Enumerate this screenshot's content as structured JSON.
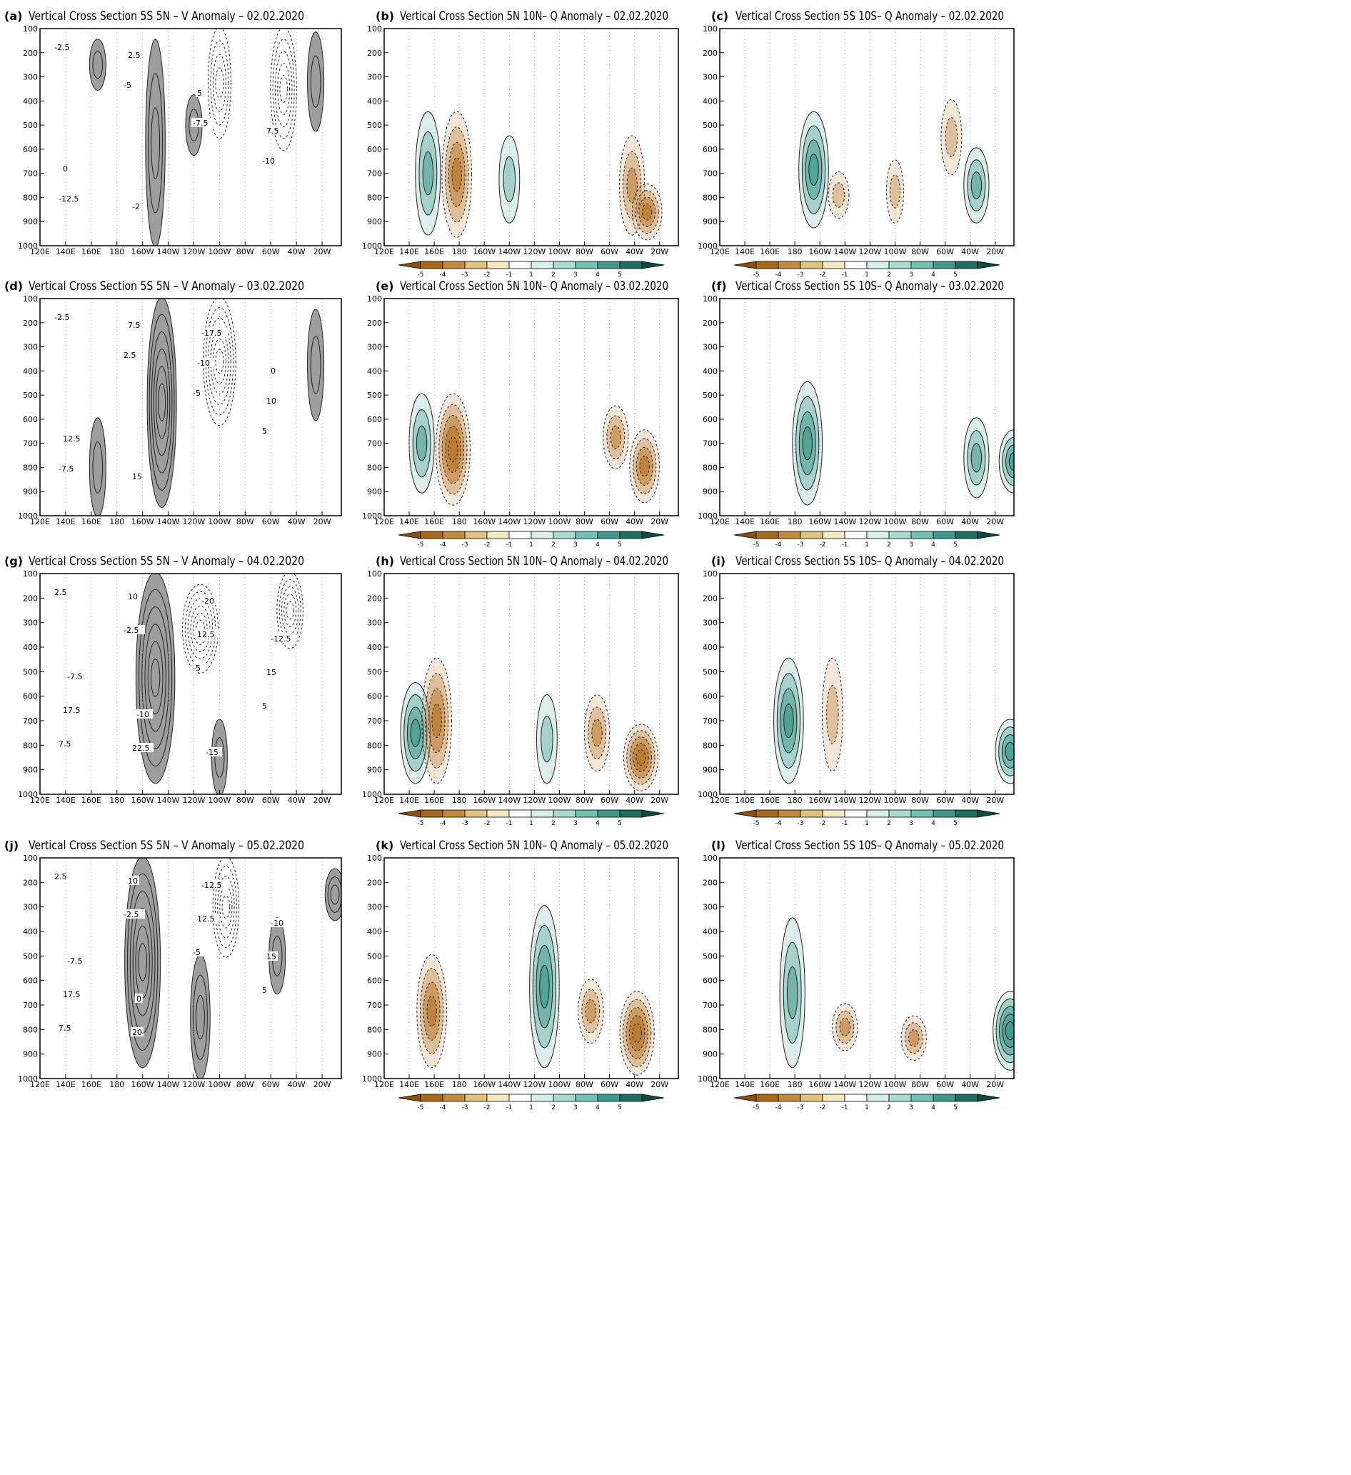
{
  "figure": {
    "y_ticks": [
      "100",
      "200",
      "300",
      "400",
      "500",
      "600",
      "700",
      "800",
      "900",
      "1000"
    ],
    "x_ticks": [
      "120E",
      "140E",
      "160E",
      "180",
      "160W",
      "140W",
      "120W",
      "100W",
      "80W",
      "60W",
      "40W",
      "20W"
    ],
    "colorbar_ticks": [
      "-5",
      "-4",
      "-3",
      "-2",
      "-1",
      "1",
      "2",
      "3",
      "4",
      "5"
    ],
    "colorbar_colors": [
      "#8c510a",
      "#a8691d",
      "#c58a3e",
      "#dfc27d",
      "#f6e8c3",
      "#ffffff",
      "#d7eeea",
      "#a8dcd3",
      "#71c1b4",
      "#3f9a8c",
      "#1f6e62",
      "#0b4d43"
    ],
    "v_shade_color": "#9e9e9e",
    "q_dry_color": "#b9772a",
    "q_wet_color": "#3f9a8c"
  },
  "panels": [
    {
      "id": "a",
      "tag": "(a)",
      "title": "Vertical Cross Section 5S 5N – V Anomaly – 02.02.2020",
      "kind": "v",
      "labels": [
        "-2.5",
        "-5",
        "-7.5",
        "-10",
        "-12.5",
        "2.5",
        "5",
        "7.5",
        "0",
        "-2"
      ]
    },
    {
      "id": "b",
      "tag": "(b)",
      "title": "Vertical Cross Section 5N 10N– Q Anomaly – 02.02.2020",
      "kind": "q",
      "labels": []
    },
    {
      "id": "c",
      "tag": "(c)",
      "title": "Vertical Cross Section 5S 10S– Q Anomaly – 02.02.2020",
      "kind": "q",
      "labels": []
    },
    {
      "id": "d",
      "tag": "(d)",
      "title": "Vertical Cross Section 5S 5N – V Anomaly – 03.02.2020",
      "kind": "v",
      "labels": [
        "-2.5",
        "2.5",
        "-5",
        "5",
        "-7.5",
        "7.5",
        "-10",
        "10",
        "12.5",
        "15",
        "-17.5",
        "0"
      ]
    },
    {
      "id": "e",
      "tag": "(e)",
      "title": "Vertical Cross Section 5N 10N– Q Anomaly – 03.02.2020",
      "kind": "q",
      "labels": []
    },
    {
      "id": "f",
      "tag": "(f)",
      "title": "Vertical Cross Section 5S 10S– Q Anomaly – 03.02.2020",
      "kind": "q",
      "labels": []
    },
    {
      "id": "g",
      "tag": "(g)",
      "title": "Vertical Cross Section 5S 5N – V Anomaly – 04.02.2020",
      "kind": "v",
      "labels": [
        "2.5",
        "-2.5",
        "-5",
        "5",
        "7.5",
        "10",
        "12.5",
        "15",
        "17.5",
        "22.5",
        "-20",
        "-12.5",
        "-7.5",
        "-10",
        "-15"
      ]
    },
    {
      "id": "h",
      "tag": "(h)",
      "title": "Vertical Cross Section 5N 10N– Q Anomaly – 04.02.2020",
      "kind": "q",
      "labels": []
    },
    {
      "id": "i",
      "tag": "(i)",
      "title": "Vertical Cross Section 5S 10S– Q Anomaly – 04.02.2020",
      "kind": "q",
      "labels": []
    },
    {
      "id": "j",
      "tag": "(j)",
      "title": "Vertical Cross Section 5S 5N – V Anomaly – 05.02.2020",
      "kind": "v",
      "labels": [
        "2.5",
        "-2.5",
        "-5",
        "5",
        "7.5",
        "10",
        "12.5",
        "15",
        "17.5",
        "20",
        "-12.5",
        "-10",
        "-7.5",
        "0"
      ]
    },
    {
      "id": "k",
      "tag": "(k)",
      "title": "Vertical Cross Section 5N 10N– Q Anomaly – 05.02.2020",
      "kind": "q",
      "labels": []
    },
    {
      "id": "l",
      "tag": "(l)",
      "title": "Vertical Cross Section 5S 10S– Q Anomaly – 05.02.2020",
      "kind": "q",
      "labels": []
    }
  ],
  "chart_data": [
    {
      "type": "heatmap",
      "title": "Vertical Cross Section 5S 5N – V Anomaly – 02.02.2020",
      "xlabel": "",
      "ylabel": "",
      "x": [
        "120E",
        "140E",
        "160E",
        "180",
        "160W",
        "140W",
        "120W",
        "100W",
        "80W",
        "60W",
        "40W",
        "20W"
      ],
      "ylim": [
        1000,
        100
      ],
      "features": [
        {
          "lon": "165E",
          "p_top": 150,
          "p_bottom": 350,
          "value": 5
        },
        {
          "lon": "150W",
          "p_top": 150,
          "p_bottom": 1000,
          "value": 7.5
        },
        {
          "lon": "120W",
          "p_top": 380,
          "p_bottom": 620,
          "value": 5
        },
        {
          "lon": "100W",
          "p_top": 100,
          "p_bottom": 550,
          "value": -10
        },
        {
          "lon": "50W",
          "p_top": 100,
          "p_bottom": 600,
          "value": -12.5
        },
        {
          "lon": "25W",
          "p_top": 120,
          "p_bottom": 520,
          "value": 5
        }
      ]
    },
    {
      "type": "heatmap",
      "title": "Vertical Cross Section 5N 10N– Q Anomaly – 02.02.2020",
      "x": [
        "120E",
        "140E",
        "160E",
        "180",
        "160W",
        "140W",
        "120W",
        "100W",
        "80W",
        "60W",
        "40W",
        "20W"
      ],
      "ylim": [
        1000,
        100
      ],
      "features": [
        {
          "lon": "155E",
          "p_top": 450,
          "p_bottom": 950,
          "value": 3
        },
        {
          "lon": "178E",
          "p_top": 450,
          "p_bottom": 960,
          "value": -4
        },
        {
          "lon": "140W",
          "p_top": 550,
          "p_bottom": 900,
          "value": 2
        },
        {
          "lon": "42W",
          "p_top": 550,
          "p_bottom": 950,
          "value": -3
        },
        {
          "lon": "30W",
          "p_top": 750,
          "p_bottom": 970,
          "value": -4
        }
      ]
    },
    {
      "type": "heatmap",
      "title": "Vertical Cross Section 5S 10S– Q Anomaly – 02.02.2020",
      "x": [
        "120E",
        "140E",
        "160E",
        "180",
        "160W",
        "140W",
        "120W",
        "100W",
        "80W",
        "60W",
        "40W",
        "20W"
      ],
      "ylim": [
        1000,
        100
      ],
      "features": [
        {
          "lon": "165W",
          "p_top": 450,
          "p_bottom": 920,
          "value": 4
        },
        {
          "lon": "145W",
          "p_top": 700,
          "p_bottom": 880,
          "value": -2
        },
        {
          "lon": "100W",
          "p_top": 650,
          "p_bottom": 900,
          "value": -1
        },
        {
          "lon": "55W",
          "p_top": 400,
          "p_bottom": 700,
          "value": -2
        },
        {
          "lon": "35W",
          "p_top": 600,
          "p_bottom": 900,
          "value": 3
        }
      ]
    },
    {
      "type": "heatmap",
      "title": "Vertical Cross Section 5S 5N – V Anomaly – 03.02.2020",
      "x": [
        "120E",
        "140E",
        "160E",
        "180",
        "160W",
        "140W",
        "120W",
        "100W",
        "80W",
        "60W",
        "40W",
        "20W"
      ],
      "ylim": [
        1000,
        100
      ],
      "features": [
        {
          "lon": "145W",
          "p_top": 100,
          "p_bottom": 960,
          "value": 15
        },
        {
          "lon": "165E",
          "p_top": 600,
          "p_bottom": 1000,
          "value": 5
        },
        {
          "lon": "100W",
          "p_top": 100,
          "p_bottom": 620,
          "value": -17.5
        },
        {
          "lon": "25W",
          "p_top": 150,
          "p_bottom": 600,
          "value": 5
        }
      ]
    },
    {
      "type": "heatmap",
      "title": "Vertical Cross Section 5N 10N– Q Anomaly – 03.02.2020",
      "x": [
        "120E",
        "140E",
        "160E",
        "180",
        "160W",
        "140W",
        "120W",
        "100W",
        "80W",
        "60W",
        "40W",
        "20W"
      ],
      "ylim": [
        1000,
        100
      ],
      "features": [
        {
          "lon": "150E",
          "p_top": 500,
          "p_bottom": 900,
          "value": 3
        },
        {
          "lon": "175E",
          "p_top": 500,
          "p_bottom": 950,
          "value": -5
        },
        {
          "lon": "55W",
          "p_top": 550,
          "p_bottom": 800,
          "value": -3
        },
        {
          "lon": "32W",
          "p_top": 650,
          "p_bottom": 940,
          "value": -4
        }
      ]
    },
    {
      "type": "heatmap",
      "title": "Vertical Cross Section 5S 10S– Q Anomaly – 03.02.2020",
      "x": [
        "120E",
        "140E",
        "160E",
        "180",
        "160W",
        "140W",
        "120W",
        "100W",
        "80W",
        "60W",
        "40W",
        "20W"
      ],
      "ylim": [
        1000,
        100
      ],
      "features": [
        {
          "lon": "170W",
          "p_top": 450,
          "p_bottom": 950,
          "value": 4
        },
        {
          "lon": "35W",
          "p_top": 600,
          "p_bottom": 920,
          "value": 3
        },
        {
          "lon": "5W",
          "p_top": 650,
          "p_bottom": 900,
          "value": 4
        }
      ]
    },
    {
      "type": "heatmap",
      "title": "Vertical Cross Section 5S 5N – V Anomaly – 04.02.2020",
      "x": [
        "120E",
        "140E",
        "160E",
        "180",
        "160W",
        "140W",
        "120W",
        "100W",
        "80W",
        "60W",
        "40W",
        "20W"
      ],
      "ylim": [
        1000,
        100
      ],
      "features": [
        {
          "lon": "150W",
          "p_top": 100,
          "p_bottom": 950,
          "value": 22.5
        },
        {
          "lon": "115W",
          "p_top": 150,
          "p_bottom": 500,
          "value": -20
        },
        {
          "lon": "100W",
          "p_top": 700,
          "p_bottom": 1000,
          "value": 2.5
        },
        {
          "lon": "45W",
          "p_top": 100,
          "p_bottom": 400,
          "value": -12.5
        }
      ]
    },
    {
      "type": "heatmap",
      "title": "Vertical Cross Section 5N 10N– Q Anomaly – 04.02.2020",
      "x": [
        "120E",
        "140E",
        "160E",
        "180",
        "160W",
        "140W",
        "120W",
        "100W",
        "80W",
        "60W",
        "40W",
        "20W"
      ],
      "ylim": [
        1000,
        100
      ],
      "features": [
        {
          "lon": "145E",
          "p_top": 550,
          "p_bottom": 950,
          "value": 4
        },
        {
          "lon": "162E",
          "p_top": 450,
          "p_bottom": 950,
          "value": -4
        },
        {
          "lon": "110W",
          "p_top": 600,
          "p_bottom": 950,
          "value": 2
        },
        {
          "lon": "70W",
          "p_top": 600,
          "p_bottom": 900,
          "value": -3
        },
        {
          "lon": "35W",
          "p_top": 720,
          "p_bottom": 980,
          "value": -5
        }
      ]
    },
    {
      "type": "heatmap",
      "title": "Vertical Cross Section 5S 10S– Q Anomaly – 04.02.2020",
      "x": [
        "120E",
        "140E",
        "160E",
        "180",
        "160W",
        "140W",
        "120W",
        "100W",
        "80W",
        "60W",
        "40W",
        "20W"
      ],
      "ylim": [
        1000,
        100
      ],
      "features": [
        {
          "lon": "175E",
          "p_top": 450,
          "p_bottom": 950,
          "value": 4
        },
        {
          "lon": "150W",
          "p_top": 450,
          "p_bottom": 900,
          "value": -2
        },
        {
          "lon": "8W",
          "p_top": 700,
          "p_bottom": 950,
          "value": 4
        }
      ]
    },
    {
      "type": "heatmap",
      "title": "Vertical Cross Section 5S 5N – V Anomaly – 05.02.2020",
      "x": [
        "120E",
        "140E",
        "160E",
        "180",
        "160W",
        "140W",
        "120W",
        "100W",
        "80W",
        "60W",
        "40W",
        "20W"
      ],
      "ylim": [
        1000,
        100
      ],
      "features": [
        {
          "lon": "160W",
          "p_top": 100,
          "p_bottom": 950,
          "value": 20
        },
        {
          "lon": "115W",
          "p_top": 500,
          "p_bottom": 1000,
          "value": 7.5
        },
        {
          "lon": "95W",
          "p_top": 100,
          "p_bottom": 500,
          "value": -12.5
        },
        {
          "lon": "55W",
          "p_top": 350,
          "p_bottom": 650,
          "value": 5
        },
        {
          "lon": "10W",
          "p_top": 150,
          "p_bottom": 350,
          "value": 7.5
        }
      ]
    },
    {
      "type": "heatmap",
      "title": "Vertical Cross Section 5N 10N– Q Anomaly – 05.02.2020",
      "x": [
        "120E",
        "140E",
        "160E",
        "180",
        "160W",
        "140W",
        "120W",
        "100W",
        "80W",
        "60W",
        "40W",
        "20W"
      ],
      "ylim": [
        1000,
        100
      ],
      "features": [
        {
          "lon": "158E",
          "p_top": 500,
          "p_bottom": 950,
          "value": -4
        },
        {
          "lon": "112W",
          "p_top": 300,
          "p_bottom": 950,
          "value": 4
        },
        {
          "lon": "75W",
          "p_top": 600,
          "p_bottom": 850,
          "value": -3
        },
        {
          "lon": "38W",
          "p_top": 650,
          "p_bottom": 980,
          "value": -5
        }
      ]
    },
    {
      "type": "heatmap",
      "title": "Vertical Cross Section 5S 10S– Q Anomaly – 05.02.2020",
      "x": [
        "120E",
        "140E",
        "160E",
        "180",
        "160W",
        "140W",
        "120W",
        "100W",
        "80W",
        "60W",
        "40W",
        "20W"
      ],
      "ylim": [
        1000,
        100
      ],
      "features": [
        {
          "lon": "178E",
          "p_top": 350,
          "p_bottom": 950,
          "value": 3
        },
        {
          "lon": "140W",
          "p_top": 700,
          "p_bottom": 880,
          "value": -3
        },
        {
          "lon": "85W",
          "p_top": 750,
          "p_bottom": 920,
          "value": -3
        },
        {
          "lon": "8W",
          "p_top": 650,
          "p_bottom": 960,
          "value": 5
        }
      ]
    }
  ]
}
